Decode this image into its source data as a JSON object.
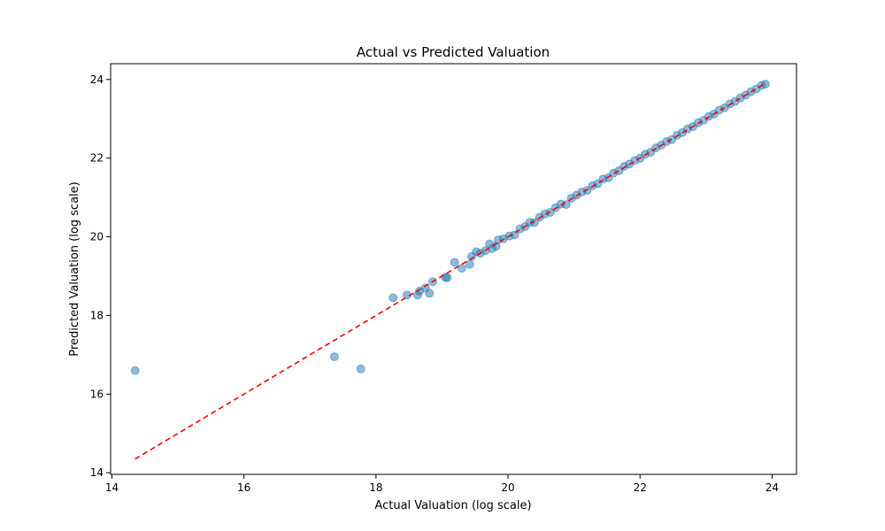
{
  "chart_data": {
    "type": "scatter",
    "title": "Actual vs Predicted Valuation",
    "xlabel": "Actual Valuation (log scale)",
    "ylabel": "Predicted Valuation (log scale)",
    "xlim": [
      13.98,
      24.37
    ],
    "ylim": [
      13.96,
      24.4
    ],
    "xticks": [
      14,
      16,
      18,
      20,
      22,
      24
    ],
    "yticks": [
      14,
      16,
      18,
      20,
      22,
      24
    ],
    "grid": false,
    "colors": {
      "points": "#1f77b4",
      "reference_line": "#ff0000"
    },
    "series": [
      {
        "type": "scatter",
        "points": [
          [
            14.35,
            16.6
          ],
          [
            17.37,
            16.95
          ],
          [
            17.77,
            16.64
          ],
          [
            18.26,
            18.45
          ],
          [
            18.47,
            18.52
          ],
          [
            18.63,
            18.52
          ],
          [
            18.66,
            18.62
          ],
          [
            18.75,
            18.7
          ],
          [
            18.81,
            18.56
          ],
          [
            18.86,
            18.86
          ],
          [
            19.05,
            18.97
          ],
          [
            19.08,
            18.96
          ],
          [
            19.19,
            19.35
          ],
          [
            19.3,
            19.2
          ],
          [
            19.42,
            19.3
          ],
          [
            19.45,
            19.5
          ],
          [
            19.52,
            19.62
          ],
          [
            19.58,
            19.58
          ],
          [
            19.66,
            19.65
          ],
          [
            19.72,
            19.82
          ],
          [
            19.76,
            19.7
          ],
          [
            19.82,
            19.76
          ],
          [
            19.85,
            19.92
          ],
          [
            19.93,
            19.95
          ],
          [
            20.02,
            20.02
          ],
          [
            20.1,
            20.05
          ],
          [
            20.18,
            20.2
          ],
          [
            20.26,
            20.26
          ],
          [
            20.33,
            20.37
          ],
          [
            20.4,
            20.36
          ],
          [
            20.48,
            20.5
          ],
          [
            20.56,
            20.58
          ],
          [
            20.64,
            20.62
          ],
          [
            20.72,
            20.74
          ],
          [
            20.8,
            20.83
          ],
          [
            20.88,
            20.82
          ],
          [
            20.96,
            20.98
          ],
          [
            21.04,
            21.06
          ],
          [
            21.12,
            21.14
          ],
          [
            21.2,
            21.18
          ],
          [
            21.28,
            21.3
          ],
          [
            21.36,
            21.35
          ],
          [
            21.44,
            21.47
          ],
          [
            21.52,
            21.5
          ],
          [
            21.6,
            21.62
          ],
          [
            21.68,
            21.68
          ],
          [
            21.76,
            21.79
          ],
          [
            21.84,
            21.85
          ],
          [
            21.92,
            21.94
          ],
          [
            22.0,
            22.0
          ],
          [
            22.08,
            22.1
          ],
          [
            22.16,
            22.15
          ],
          [
            22.24,
            22.26
          ],
          [
            22.32,
            22.33
          ],
          [
            22.4,
            22.42
          ],
          [
            22.48,
            22.47
          ],
          [
            22.56,
            22.58
          ],
          [
            22.64,
            22.65
          ],
          [
            22.72,
            22.74
          ],
          [
            22.8,
            22.8
          ],
          [
            22.88,
            22.9
          ],
          [
            22.96,
            22.96
          ],
          [
            23.04,
            23.06
          ],
          [
            23.12,
            23.12
          ],
          [
            23.2,
            23.22
          ],
          [
            23.28,
            23.28
          ],
          [
            23.36,
            23.38
          ],
          [
            23.44,
            23.44
          ],
          [
            23.52,
            23.53
          ],
          [
            23.6,
            23.6
          ],
          [
            23.68,
            23.69
          ],
          [
            23.76,
            23.76
          ],
          [
            23.84,
            23.85
          ],
          [
            23.9,
            23.88
          ]
        ]
      },
      {
        "type": "line",
        "style": "dashed",
        "x": [
          14.35,
          23.9
        ],
        "y": [
          14.35,
          23.9
        ]
      }
    ]
  }
}
